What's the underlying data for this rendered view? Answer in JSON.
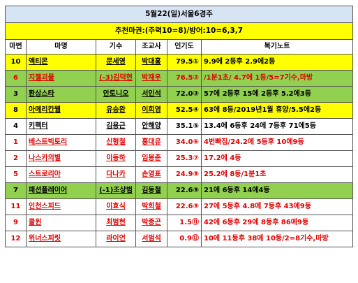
{
  "title": "5월22(일)서울6경주",
  "recommendation": "추천마권:(주력10=8)/방어:10=6,3,7",
  "headers": [
    "마번",
    "마명",
    "기수",
    "조교사",
    "인기도",
    "복기노트"
  ],
  "rows": [
    {
      "num": "10",
      "horse": "액티몬",
      "jockey": "문세영",
      "trainer": "박대흥",
      "pop": "79.5",
      "rank": "①",
      "note": "9.9에 2등후 2.9에2등",
      "bg": "yellow",
      "red": false
    },
    {
      "num": "6",
      "horse": "지젤괴물",
      "jockey": "(-3)김덕현",
      "trainer": "박재우",
      "pop": "76.5",
      "rank": "②",
      "note": "/1분1초/  4.7에 1등/5=7기수,마방",
      "bg": "green",
      "red": true
    },
    {
      "num": "3",
      "horse": "환상스타",
      "jockey": "안토니오",
      "trainer": "서인석",
      "pop": "72.0",
      "rank": "③",
      "note": "57에 2등후 15에 2등후 5.2에3등",
      "bg": "green",
      "red": false
    },
    {
      "num": "8",
      "horse": "아메리칸웹",
      "jockey": "유승완",
      "trainer": "이희영",
      "pop": "52.5",
      "rank": "④",
      "note": "63에 8등/2019년1월 휴양/5.5에2등",
      "bg": "yellow",
      "red": false
    },
    {
      "num": "4",
      "horse": "키팩터",
      "jockey": "김용근",
      "trainer": "안해양",
      "pop": "35.1",
      "rank": "⑤",
      "note": "13.4에 6등후 24에 7등후 71에5등",
      "bg": "white",
      "red": false
    },
    {
      "num": "1",
      "horse": "베스트빅토리",
      "jockey": "신형철",
      "trainer": "홍대유",
      "pop": "34.0",
      "rank": "⑥",
      "note": "4번빠짐/24.2에 5등후 10에9등",
      "bg": "white",
      "red": true
    },
    {
      "num": "2",
      "horse": "나스카의별",
      "jockey": "이동하",
      "trainer": "임봉춘",
      "pop": "25.3",
      "rank": "⑦",
      "note": "17.2에 4등",
      "bg": "white",
      "red": true
    },
    {
      "num": "5",
      "horse": "스트로리아",
      "jockey": "다나카",
      "trainer": "손영표",
      "pop": "24.9",
      "rank": "⑧",
      "note": "25.2에 8등/1분1초",
      "bg": "white",
      "red": true
    },
    {
      "num": "7",
      "horse": "패션플레이어",
      "jockey": "(-1)조상범",
      "trainer": "김동철",
      "pop": "22.6",
      "rank": "⑨",
      "note": "21에 6등후 14에4등",
      "bg": "green",
      "red": false
    },
    {
      "num": "11",
      "horse": "인천스피드",
      "jockey": "이효식",
      "trainer": "박희철",
      "pop": "22.6",
      "rank": "⑨",
      "note": "27에 5등후 4.8에 7등후 43에9등",
      "bg": "white",
      "red": true
    },
    {
      "num": "9",
      "horse": "쿨윈",
      "jockey": "최범현",
      "trainer": "박종곤",
      "pop": "1.5",
      "rank": "⑪",
      "note": "42에 6등후 29에 8등후 86에9등",
      "bg": "white",
      "red": true
    },
    {
      "num": "12",
      "horse": "위너스피릿",
      "jockey": "라이언",
      "trainer": "서범석",
      "pop": "0.9",
      "rank": "⑫",
      "note": "10에 11등후 38에 10등/2=8기수,마방",
      "bg": "white",
      "red": true
    }
  ]
}
